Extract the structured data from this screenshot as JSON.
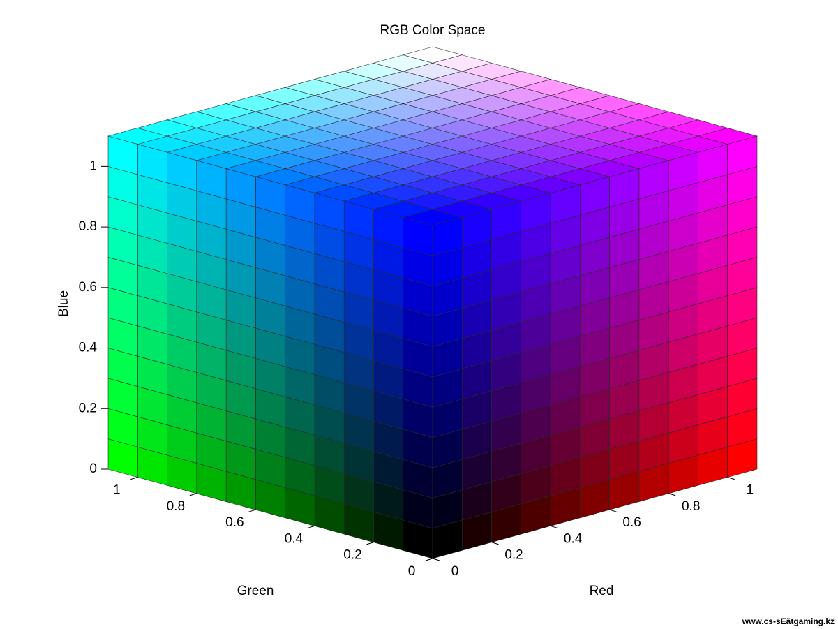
{
  "chart_data": {
    "type": "cube",
    "title": "RGB Color Space",
    "xlabel": "Red",
    "ylabel": "Green",
    "zlabel": "Blue",
    "xlim": [
      0,
      1.1
    ],
    "ylim": [
      0,
      1.1
    ],
    "zlim": [
      0,
      1.1
    ],
    "xticks": [
      0,
      0.2,
      0.4,
      0.6,
      0.8,
      1
    ],
    "yticks": [
      0,
      0.2,
      0.4,
      0.6,
      0.8,
      1
    ],
    "zticks": [
      0,
      0.2,
      0.4,
      0.6,
      0.8,
      1
    ]
  },
  "watermark": "www.cs-sEätgaming.kz"
}
